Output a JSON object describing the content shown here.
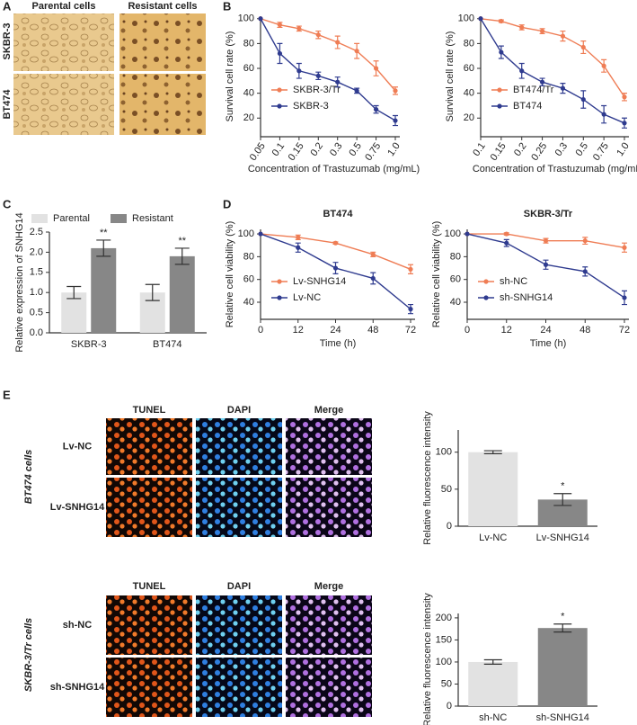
{
  "figure": {
    "panel_labels": [
      "A",
      "B",
      "C",
      "D",
      "E"
    ],
    "a_columns": [
      "Parental cells",
      "Resistant cells"
    ],
    "a_rows": [
      "SKBR-3",
      "BT474"
    ],
    "e_columns": [
      "TUNEL",
      "DAPI",
      "Merge"
    ],
    "e_groups": [
      {
        "name": "BT474 cells",
        "rows": [
          "Lv-NC",
          "Lv-SNHG14"
        ]
      },
      {
        "name": "SKBR-3/Tr cells",
        "rows": [
          "sh-NC",
          "sh-SNHG14"
        ]
      }
    ]
  },
  "chart_data": [
    {
      "type": "line",
      "x_label": "Concentration of Trastuzumab (mg/mL)",
      "y_label": "Survival cell rate (%)",
      "categories": [
        "0.05",
        "0.1",
        "0.15",
        "0.2",
        "0.3",
        "0.5",
        "0.75",
        "1.0"
      ],
      "ylim": [
        5,
        102
      ],
      "yticks": [
        20,
        40,
        60,
        80,
        100
      ],
      "legend": "lower left",
      "series": [
        {
          "name": "SKBR-3/Tr",
          "color": "#ef7d55",
          "values": [
            100,
            95,
            92,
            87,
            81,
            74,
            60,
            42
          ],
          "errors": [
            0,
            2,
            2,
            3,
            5,
            6,
            6,
            3
          ]
        },
        {
          "name": "SKBR-3",
          "color": "#2f3b8f",
          "values": [
            100,
            72,
            58,
            54,
            49,
            42,
            27,
            18
          ],
          "errors": [
            0,
            8,
            6,
            3,
            4,
            2,
            3,
            4
          ]
        }
      ]
    },
    {
      "type": "line",
      "x_label": "Concentration of Trastuzumab (mg/mL)",
      "y_label": "Survival cell rate (%)",
      "categories": [
        "0.1",
        "0.15",
        "0.2",
        "0.25",
        "0.3",
        "0.5",
        "0.75",
        "1.0"
      ],
      "ylim": [
        5,
        102
      ],
      "yticks": [
        20,
        40,
        60,
        80,
        100
      ],
      "legend": "lower left",
      "series": [
        {
          "name": "BT474/Tr",
          "color": "#ef7d55",
          "values": [
            100,
            98,
            93,
            90,
            86,
            77,
            62,
            37
          ],
          "errors": [
            0,
            1,
            2,
            2,
            4,
            5,
            5,
            3
          ]
        },
        {
          "name": "BT474",
          "color": "#2f3b8f",
          "values": [
            100,
            73,
            58,
            49,
            44,
            35,
            23,
            16
          ],
          "errors": [
            0,
            5,
            6,
            3,
            4,
            7,
            7,
            4
          ]
        }
      ]
    },
    {
      "type": "bar",
      "y_label": "Relative expression of SNHG14",
      "categories": [
        "SKBR-3",
        "BT474"
      ],
      "ylim": [
        0,
        2.5
      ],
      "yticks": [
        {
          "value": 0,
          "label": "0.0"
        },
        0.5,
        {
          "value": 1,
          "label": "1.0"
        },
        1.5,
        {
          "value": 2,
          "label": "2.0"
        },
        2.5
      ],
      "legend": "top",
      "series": [
        {
          "name": "Parental",
          "color": "#e2e2e2",
          "values": [
            1.0,
            1.0
          ],
          "errors": [
            0.15,
            0.2
          ]
        },
        {
          "name": "Resistant",
          "color": "#878787",
          "values": [
            2.1,
            1.9
          ],
          "errors": [
            0.2,
            0.2
          ],
          "annotations": [
            "**",
            "**"
          ]
        }
      ]
    },
    {
      "type": "line",
      "title": "BT474",
      "x_label": "Time (h)",
      "y_label": "Relative cell viability (%)",
      "categories": [
        "0",
        "12",
        "24",
        "48",
        "72"
      ],
      "ylim": [
        25,
        104
      ],
      "yticks": [
        40,
        60,
        80,
        100
      ],
      "legend": "lower left",
      "series": [
        {
          "name": "Lv-SNHG14",
          "color": "#ef7d55",
          "values": [
            100,
            97,
            92,
            82,
            69
          ],
          "errors": [
            0,
            2,
            1,
            2,
            4
          ]
        },
        {
          "name": "Lv-NC",
          "color": "#2f3b8f",
          "values": [
            100,
            88,
            70,
            61,
            34
          ],
          "errors": [
            0,
            4,
            5,
            5,
            4
          ]
        }
      ]
    },
    {
      "type": "line",
      "title": "SKBR-3/Tr",
      "x_label": "Time (h)",
      "y_label": "Relative cell viability (%)",
      "categories": [
        "0",
        "12",
        "24",
        "48",
        "72"
      ],
      "ylim": [
        25,
        104
      ],
      "yticks": [
        40,
        60,
        80,
        100
      ],
      "legend": "lower left",
      "series": [
        {
          "name": "sh-NC",
          "color": "#ef7d55",
          "values": [
            100,
            100,
            94,
            94,
            88
          ],
          "errors": [
            0,
            1,
            2,
            3,
            4
          ]
        },
        {
          "name": "sh-SNHG14",
          "color": "#2f3b8f",
          "values": [
            100,
            92,
            73,
            67,
            44
          ],
          "errors": [
            0,
            3,
            4,
            4,
            6
          ]
        }
      ]
    },
    {
      "type": "simplebar",
      "y_label": "Relative fluorescence intensity",
      "categories": [
        "Lv-NC",
        "Lv-SNHG14"
      ],
      "values": [
        100,
        36
      ],
      "errors": [
        2,
        8
      ],
      "colors": [
        "#e2e2e2",
        "#878787"
      ],
      "annotations": [
        null,
        "*"
      ],
      "ylim": [
        0,
        130
      ],
      "yticks": [
        0,
        50,
        100
      ]
    },
    {
      "type": "simplebar",
      "y_label": "Relative fluorescence intensity",
      "categories": [
        "sh-NC",
        "sh-SNHG14"
      ],
      "values": [
        100,
        177
      ],
      "errors": [
        5,
        9
      ],
      "colors": [
        "#e2e2e2",
        "#878787"
      ],
      "annotations": [
        null,
        "*"
      ],
      "ylim": [
        0,
        210
      ],
      "yticks": [
        0,
        50,
        100,
        150,
        200
      ]
    }
  ]
}
